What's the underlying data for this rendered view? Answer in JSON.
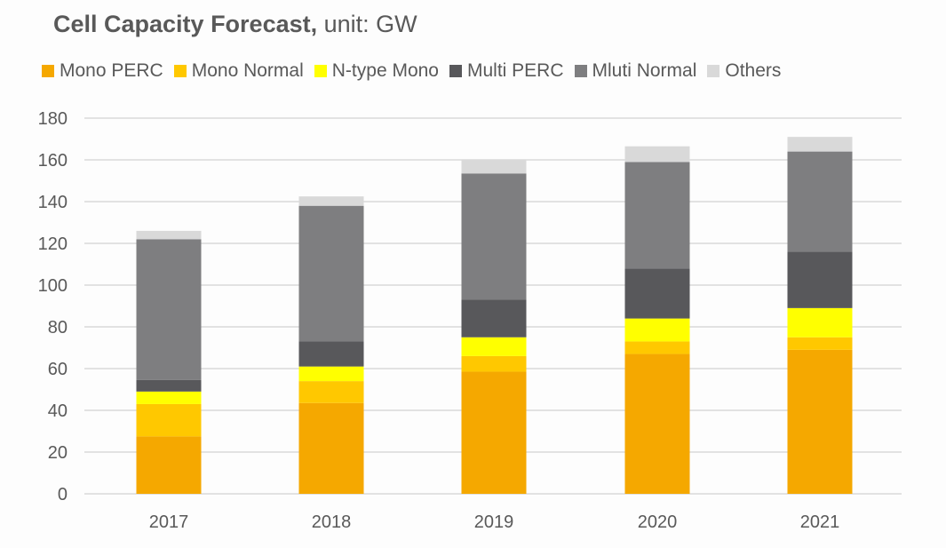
{
  "chart_data": {
    "type": "bar",
    "stacked": true,
    "title": "Cell Capacity Forecast,",
    "title_suffix": "unit: GW",
    "xlabel": "",
    "ylabel": "",
    "categories": [
      "2017",
      "2018",
      "2019",
      "2020",
      "2021"
    ],
    "ylim": [
      0,
      180
    ],
    "yticks": [
      0,
      20,
      40,
      60,
      80,
      100,
      120,
      140,
      160,
      180
    ],
    "grid": true,
    "legend_position": "top",
    "series": [
      {
        "name": "Mono PERC",
        "color": "#f5a800",
        "values": [
          27.5,
          43.5,
          58.5,
          67,
          69
        ]
      },
      {
        "name": "Mono Normal",
        "color": "#ffc800",
        "values": [
          15.5,
          10.5,
          7.5,
          6,
          6
        ]
      },
      {
        "name": "N-type Mono",
        "color": "#ffff00",
        "values": [
          6,
          7,
          9,
          11,
          14
        ]
      },
      {
        "name": "Multi PERC",
        "color": "#58585b",
        "values": [
          5.5,
          12,
          18,
          24,
          27
        ]
      },
      {
        "name": "Mluti Normal",
        "color": "#7e7e80",
        "values": [
          67.5,
          65,
          60.5,
          51,
          48
        ]
      },
      {
        "name": "Others",
        "color": "#d9d9d9",
        "values": [
          4,
          4.5,
          6.5,
          7.5,
          7
        ]
      }
    ]
  }
}
